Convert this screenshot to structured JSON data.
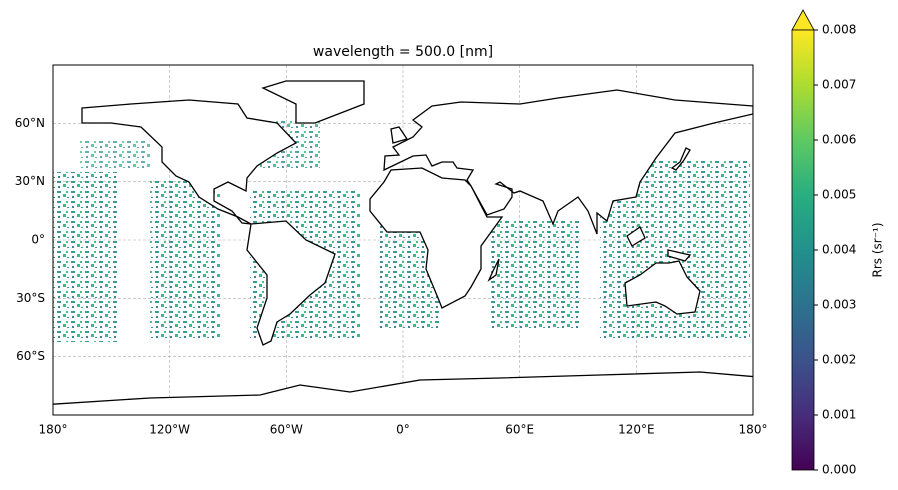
{
  "chart_data": {
    "type": "map",
    "title": "wavelength = 500.0 [nm]",
    "xlim": [
      -180,
      180
    ],
    "ylim": [
      -90,
      90
    ],
    "xticks": [
      {
        "value": -180,
        "label": "180°"
      },
      {
        "value": -120,
        "label": "120°W"
      },
      {
        "value": -60,
        "label": "60°W"
      },
      {
        "value": 0,
        "label": "0°"
      },
      {
        "value": 60,
        "label": "60°E"
      },
      {
        "value": 120,
        "label": "120°E"
      },
      {
        "value": 180,
        "label": "180°"
      }
    ],
    "yticks": [
      {
        "value": 60,
        "label": "60°N"
      },
      {
        "value": 30,
        "label": "30°N"
      },
      {
        "value": 0,
        "label": "0°"
      },
      {
        "value": -30,
        "label": "30°S"
      },
      {
        "value": -60,
        "label": "60°S"
      }
    ],
    "grid": true,
    "colorbar": {
      "label": "Rrs (sr⁻¹)",
      "lim": [
        0,
        0.008
      ],
      "ticks": [
        {
          "value": 0,
          "label": "0.000"
        },
        {
          "value": 0.001,
          "label": "0.001"
        },
        {
          "value": 0.002,
          "label": "0.002"
        },
        {
          "value": 0.003,
          "label": "0.003"
        },
        {
          "value": 0.004,
          "label": "0.004"
        },
        {
          "value": 0.005,
          "label": "0.005"
        },
        {
          "value": 0.006,
          "label": "0.006"
        },
        {
          "value": 0.007,
          "label": "0.007"
        },
        {
          "value": 0.008,
          "label": "0.008"
        }
      ]
    }
  }
}
